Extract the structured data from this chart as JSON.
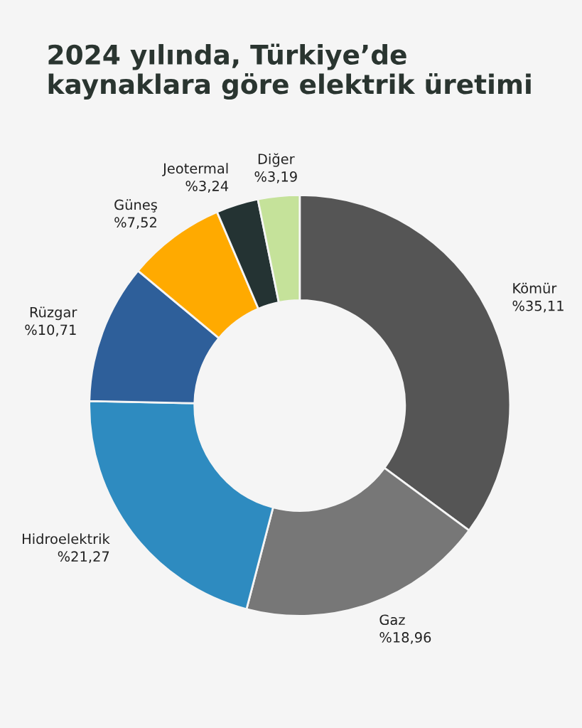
{
  "chart_data": {
    "type": "donut",
    "title": "2024 yılında, Türkiye’de\nkaynaklara göre elektrik üretimi",
    "categories": [
      "Kömür",
      "Gaz",
      "Hidroelektrik",
      "Rüzgar",
      "Güneş",
      "Jeotermal",
      "Diğer"
    ],
    "values": [
      35.11,
      18.96,
      21.27,
      10.71,
      7.52,
      3.24,
      3.19
    ],
    "value_labels": [
      "%35,11",
      "%18,96",
      "%21,27",
      "%10,71",
      "%7,52",
      "%3,24",
      "%3,19"
    ],
    "colors": [
      "#555555",
      "#777777",
      "#2e8bc0",
      "#2e5f9a",
      "#ffaa00",
      "#243333",
      "#c5e29a"
    ],
    "legend": false
  }
}
